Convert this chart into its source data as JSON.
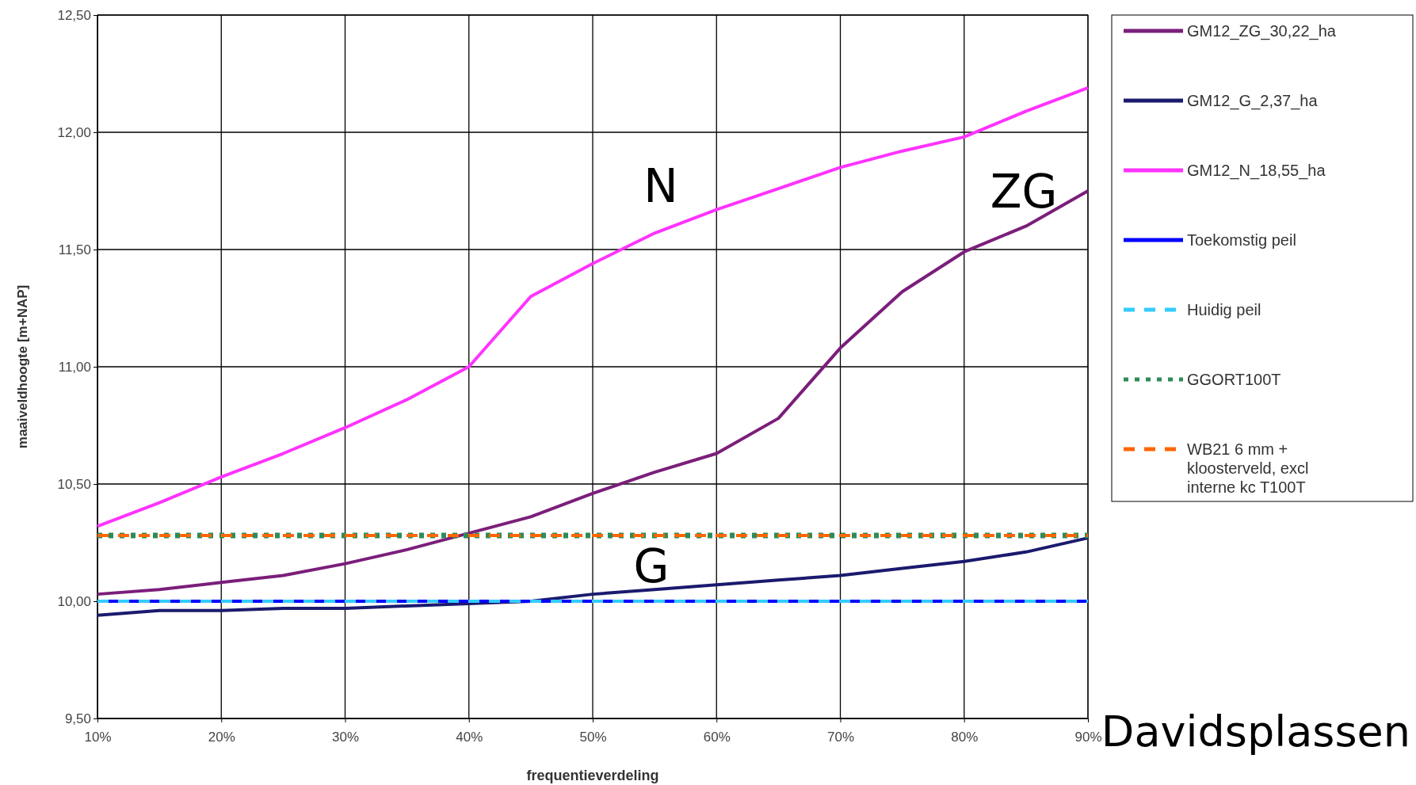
{
  "chart_data": {
    "type": "line",
    "xlabel": "frequentieverdeling",
    "ylabel": "maaiveldhoogte [m+NAP]",
    "x": [
      10,
      15,
      20,
      25,
      30,
      35,
      40,
      45,
      50,
      55,
      60,
      65,
      70,
      75,
      80,
      85,
      90
    ],
    "xlim": [
      10,
      90
    ],
    "xticks": [
      {
        "value": 10,
        "label": "10%"
      },
      {
        "value": 20,
        "label": "20%"
      },
      {
        "value": 30,
        "label": "30%"
      },
      {
        "value": 40,
        "label": "40%"
      },
      {
        "value": 50,
        "label": "50%"
      },
      {
        "value": 60,
        "label": "60%"
      },
      {
        "value": 70,
        "label": "70%"
      },
      {
        "value": 80,
        "label": "80%"
      },
      {
        "value": 90,
        "label": "90%"
      }
    ],
    "ylim": [
      9.5,
      12.5
    ],
    "yticks": [
      {
        "value": 9.5,
        "label": "9,50"
      },
      {
        "value": 10,
        "label": "10,00"
      },
      {
        "value": 10.5,
        "label": "10,50"
      },
      {
        "value": 11,
        "label": "11,00"
      },
      {
        "value": 11.5,
        "label": "11,50"
      },
      {
        "value": 12,
        "label": "12,00"
      },
      {
        "value": 12.5,
        "label": "12,50"
      }
    ],
    "grid": true,
    "legend": "right",
    "marker": "none",
    "series": [
      {
        "name": "GM12_ZG_30,22_ha",
        "color": "#7b1e7a",
        "line_style": "solid",
        "values": [
          10.03,
          10.05,
          10.08,
          10.11,
          10.16,
          10.22,
          10.29,
          10.36,
          10.46,
          10.55,
          10.63,
          10.78,
          11.08,
          11.32,
          11.49,
          11.6,
          11.75
        ]
      },
      {
        "name": "GM12_G_2,37_ha",
        "color": "#1a1a6e",
        "line_style": "solid",
        "values": [
          9.94,
          9.96,
          9.96,
          9.97,
          9.97,
          9.98,
          9.99,
          10.0,
          10.03,
          10.05,
          10.07,
          10.09,
          10.11,
          10.14,
          10.17,
          10.21,
          10.27
        ]
      },
      {
        "name": "GM12_N_18,55_ha",
        "color": "#ff33ff",
        "line_style": "solid",
        "values": [
          10.32,
          10.42,
          10.53,
          10.63,
          10.74,
          10.86,
          11.0,
          11.3,
          11.44,
          11.57,
          11.67,
          11.76,
          11.85,
          11.92,
          11.98,
          12.09,
          12.19
        ]
      },
      {
        "name": "Toekomstig peil",
        "color": "#0000ff",
        "line_style": "solid",
        "values": [
          10,
          10,
          10,
          10,
          10,
          10,
          10,
          10,
          10,
          10,
          10,
          10,
          10,
          10,
          10,
          10,
          10
        ]
      },
      {
        "name": "Huidig peil",
        "color": "#33ccff",
        "line_style": "dashed",
        "values": [
          10,
          10,
          10,
          10,
          10,
          10,
          10,
          10,
          10,
          10,
          10,
          10,
          10,
          10,
          10,
          10,
          10
        ]
      },
      {
        "name": "GGORT100T",
        "color": "#2e8b57",
        "line_style": "dotted",
        "values": [
          10.28,
          10.28,
          10.28,
          10.28,
          10.28,
          10.28,
          10.28,
          10.28,
          10.28,
          10.28,
          10.28,
          10.28,
          10.28,
          10.28,
          10.28,
          10.28,
          10.28
        ]
      },
      {
        "name": "WB21 6 mm + kloosterveld, excl interne kc T100T",
        "color": "#ff6600",
        "line_style": "dashed",
        "values": [
          10.28,
          10.28,
          10.28,
          10.28,
          10.28,
          10.28,
          10.28,
          10.28,
          10.28,
          10.28,
          10.28,
          10.28,
          10.28,
          10.28,
          10.28,
          10.28,
          10.28
        ]
      }
    ],
    "annotations": [
      "N",
      "ZG",
      "G",
      "Davidsplassen"
    ]
  }
}
